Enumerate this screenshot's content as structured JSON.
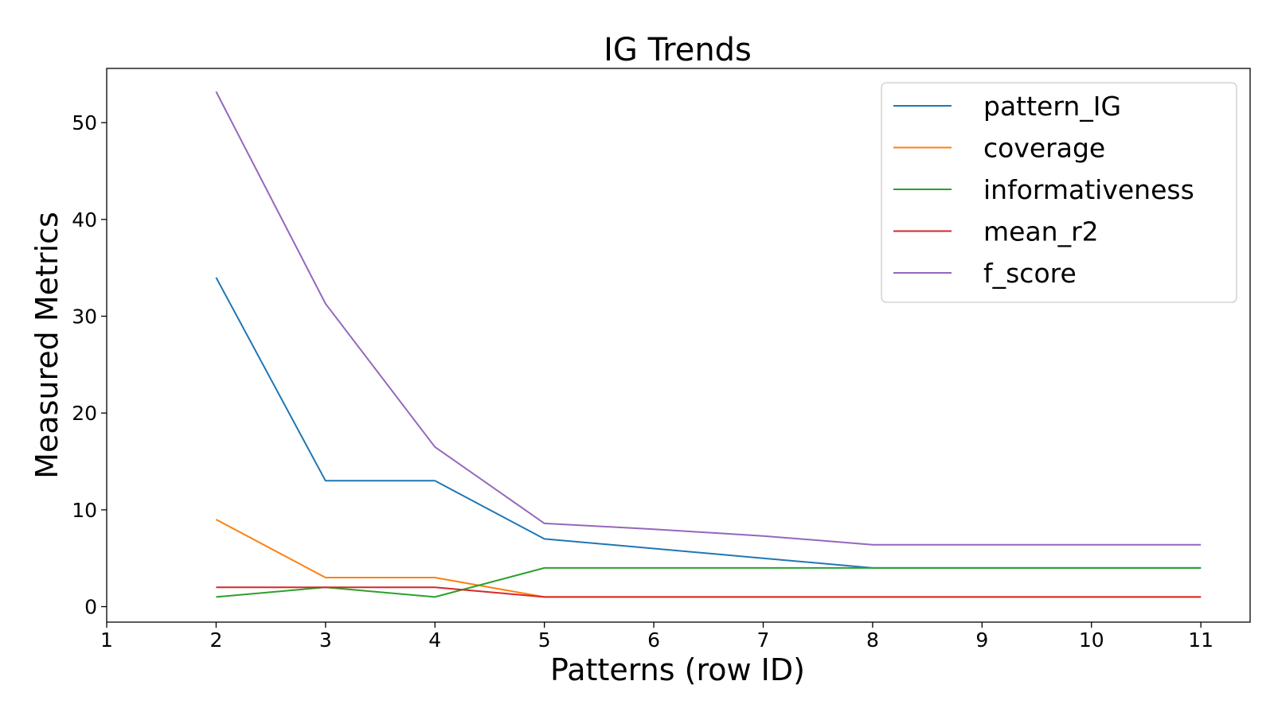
{
  "chart_data": {
    "type": "line",
    "title": "IG Trends",
    "xlabel": "Patterns (row ID)",
    "ylabel": "Measured Metrics",
    "xlim": [
      1,
      11.45
    ],
    "ylim": [
      -1.6,
      55.6
    ],
    "xticks": [
      1,
      2,
      3,
      4,
      5,
      6,
      7,
      8,
      9,
      10,
      11
    ],
    "yticks": [
      0,
      10,
      20,
      30,
      40,
      50
    ],
    "grid": false,
    "legend_position": "top-right",
    "x": [
      2,
      3,
      4,
      5,
      6,
      7,
      8,
      9,
      10,
      11
    ],
    "series": [
      {
        "name": "pattern_IG",
        "color": "#1f77b4",
        "values": [
          34,
          13,
          13,
          7,
          6,
          5,
          4,
          4,
          4,
          4
        ]
      },
      {
        "name": "coverage",
        "color": "#ff7f0e",
        "values": [
          9,
          3,
          3,
          1,
          1,
          1,
          1,
          1,
          1,
          1
        ]
      },
      {
        "name": "informativeness",
        "color": "#2ca02c",
        "values": [
          1,
          2,
          1,
          4,
          4,
          4,
          4,
          4,
          4,
          4
        ]
      },
      {
        "name": "mean_r2",
        "color": "#d62728",
        "values": [
          2,
          2,
          2,
          1,
          1,
          1,
          1,
          1,
          1,
          1
        ]
      },
      {
        "name": "f_score",
        "color": "#9467bd",
        "values": [
          53.2,
          31.3,
          16.5,
          8.6,
          8.0,
          7.3,
          6.4,
          6.4,
          6.4,
          6.4
        ]
      }
    ]
  }
}
